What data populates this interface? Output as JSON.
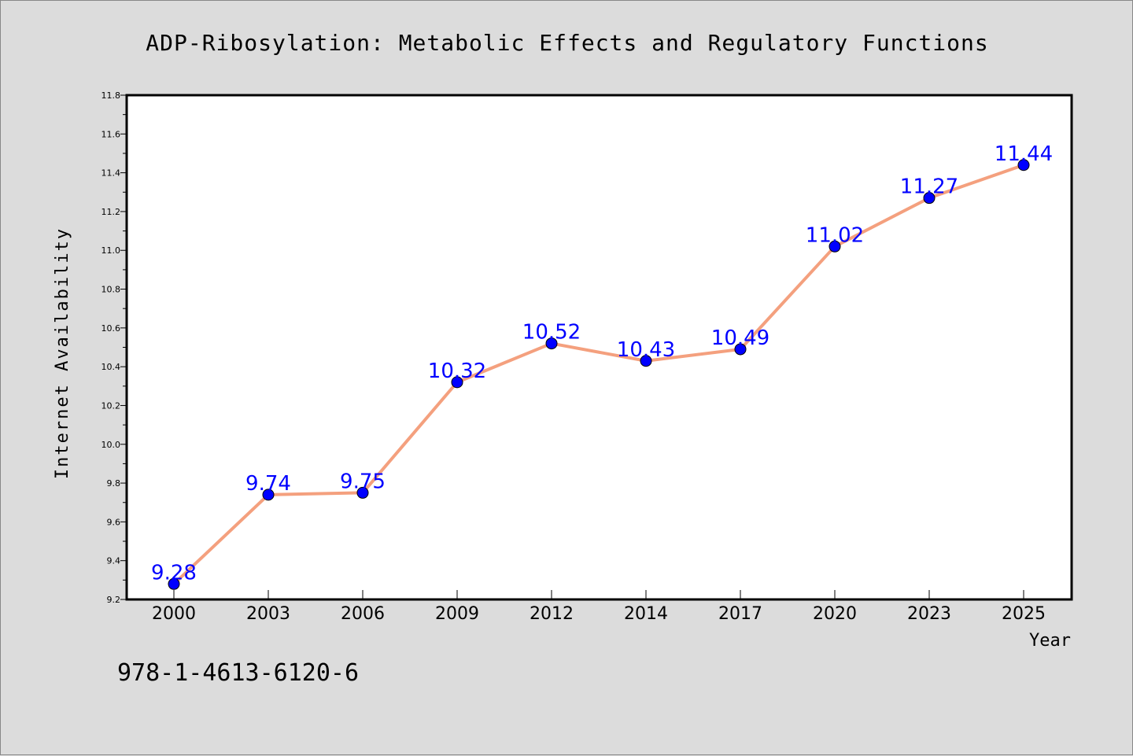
{
  "chart_data": {
    "type": "line",
    "title": "ADP-Ribosylation: Metabolic Effects and Regulatory Functions",
    "xlabel": "Year",
    "ylabel": "Internet Availability",
    "categories": [
      "2000",
      "2003",
      "2006",
      "2009",
      "2012",
      "2014",
      "2017",
      "2020",
      "2023",
      "2025"
    ],
    "series": [
      {
        "values": [
          9.28,
          9.74,
          9.75,
          10.32,
          10.52,
          10.43,
          10.49,
          11.02,
          11.27,
          11.44
        ],
        "line_color": "#f4a07e",
        "marker_color": "#0000ff",
        "label_color": "#0000ff"
      }
    ],
    "ylim": [
      9.2,
      11.8
    ],
    "yticks": [
      "9.2",
      "9.4",
      "9.6",
      "9.8",
      "10.0",
      "10.2",
      "10.4",
      "10.6",
      "10.8",
      "11.0",
      "11.2",
      "11.4",
      "11.6",
      "11.8"
    ],
    "grid": false,
    "legend": "none",
    "data_labels": true
  },
  "annotation": "978-1-4613-6120-6"
}
